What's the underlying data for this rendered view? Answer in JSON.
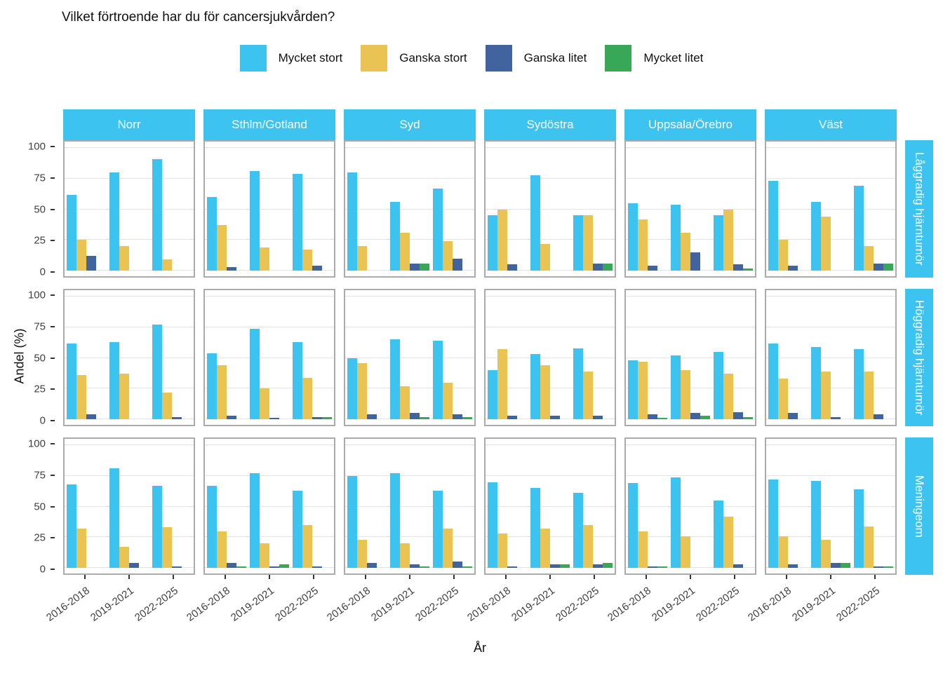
{
  "chart_data": {
    "type": "bar",
    "title": "Vilket förtroende har du för cancersjukvården?",
    "xlabel": "År",
    "ylabel": "Andel (%)",
    "ylim": [
      0,
      100
    ],
    "yticks": [
      0,
      25,
      50,
      75,
      100
    ],
    "grid": "on",
    "legend_position": "top-center",
    "strip_color": "#3CC3F0",
    "categories": [
      "2016-2018",
      "2019-2021",
      "2022-2025"
    ],
    "series": [
      {
        "id": "mycket-stort",
        "label": "Mycket stort",
        "color": "#3CC3F0"
      },
      {
        "id": "ganska-stort",
        "label": "Ganska stort",
        "color": "#EAC355"
      },
      {
        "id": "ganska-litet",
        "label": "Ganska litet",
        "color": "#41639E"
      },
      {
        "id": "mycket-litet",
        "label": "Mycket litet",
        "color": "#38A758"
      }
    ],
    "facet_cols": [
      "Norr",
      "Sthlm/Gotland",
      "Syd",
      "Sydöstra",
      "Uppsala/Örebro",
      "Väst"
    ],
    "facet_rows": [
      "Låggradig hjärntumör",
      "Höggradig hjärntumör",
      "Meningeom"
    ],
    "panels_note": "panels[facet_row][facet_col][category] = [Mycket stort, Ganska stort, Ganska litet, Mycket litet] in Andel (%), null = not shown",
    "panels": [
      [
        [
          [
            62,
            25,
            12,
            null
          ],
          [
            80,
            20,
            null,
            null
          ],
          [
            91,
            9,
            null,
            null
          ]
        ],
        [
          [
            60,
            37,
            3,
            null
          ],
          [
            81,
            19,
            null,
            null
          ],
          [
            79,
            17,
            4,
            null
          ]
        ],
        [
          [
            80,
            20,
            null,
            null
          ],
          [
            56,
            31,
            6,
            6
          ],
          [
            67,
            24,
            10,
            null
          ]
        ],
        [
          [
            45,
            50,
            5,
            null
          ],
          [
            78,
            22,
            null,
            null
          ],
          [
            45,
            45,
            6,
            6
          ]
        ],
        [
          [
            55,
            42,
            4,
            null
          ],
          [
            54,
            31,
            15,
            null
          ],
          [
            45,
            50,
            5,
            2
          ]
        ],
        [
          [
            73,
            25,
            4,
            null
          ],
          [
            56,
            44,
            null,
            null
          ],
          [
            69,
            20,
            6,
            6
          ]
        ]
      ],
      [
        [
          [
            62,
            36,
            4,
            null
          ],
          [
            63,
            37,
            null,
            null
          ],
          [
            77,
            22,
            2,
            null
          ]
        ],
        [
          [
            54,
            44,
            3,
            null
          ],
          [
            74,
            25,
            1,
            null
          ],
          [
            63,
            34,
            2,
            2
          ]
        ],
        [
          [
            50,
            46,
            4,
            null
          ],
          [
            65,
            27,
            5,
            2
          ],
          [
            64,
            30,
            4,
            2
          ]
        ],
        [
          [
            40,
            57,
            3,
            null
          ],
          [
            53,
            44,
            3,
            null
          ],
          [
            58,
            39,
            3,
            null
          ]
        ],
        [
          [
            48,
            47,
            4,
            1
          ],
          [
            52,
            40,
            5,
            3
          ],
          [
            55,
            37,
            6,
            2
          ]
        ],
        [
          [
            62,
            33,
            5,
            null
          ],
          [
            59,
            39,
            2,
            null
          ],
          [
            57,
            39,
            4,
            null
          ]
        ]
      ],
      [
        [
          [
            68,
            32,
            null,
            null
          ],
          [
            81,
            17,
            4,
            null
          ],
          [
            67,
            33,
            1,
            null
          ]
        ],
        [
          [
            67,
            30,
            4,
            1
          ],
          [
            77,
            20,
            1,
            3
          ],
          [
            63,
            35,
            1,
            null
          ]
        ],
        [
          [
            75,
            23,
            4,
            null
          ],
          [
            77,
            20,
            3,
            1
          ],
          [
            63,
            32,
            5,
            1
          ]
        ],
        [
          [
            70,
            28,
            1,
            null
          ],
          [
            65,
            32,
            3,
            3
          ],
          [
            61,
            35,
            3,
            4
          ]
        ],
        [
          [
            69,
            30,
            1,
            1
          ],
          [
            74,
            26,
            null,
            null
          ],
          [
            55,
            42,
            3,
            null
          ]
        ],
        [
          [
            72,
            26,
            3,
            null
          ],
          [
            71,
            23,
            4,
            4
          ],
          [
            64,
            34,
            1,
            1
          ]
        ]
      ]
    ]
  }
}
